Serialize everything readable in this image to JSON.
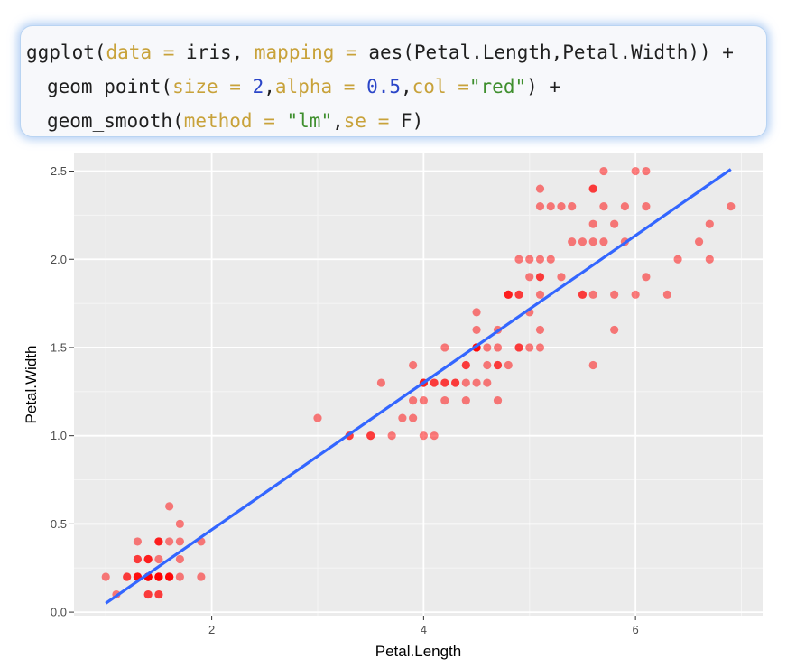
{
  "code": {
    "lines": [
      [
        {
          "t": "ggplot(",
          "c": "fn"
        },
        {
          "t": "data",
          "c": "arg"
        },
        {
          "t": " = ",
          "c": "op"
        },
        {
          "t": "iris, ",
          "c": "plain"
        },
        {
          "t": "mapping",
          "c": "arg"
        },
        {
          "t": " = ",
          "c": "op"
        },
        {
          "t": "aes(Petal.Length,Petal.Width)) +",
          "c": "plain"
        }
      ],
      [
        {
          "t": "geom_point(",
          "c": "fn"
        },
        {
          "t": "size",
          "c": "arg"
        },
        {
          "t": " = ",
          "c": "op"
        },
        {
          "t": "2",
          "c": "num"
        },
        {
          "t": ",",
          "c": "plain"
        },
        {
          "t": "alpha",
          "c": "arg"
        },
        {
          "t": " = ",
          "c": "op"
        },
        {
          "t": "0.5",
          "c": "num"
        },
        {
          "t": ",",
          "c": "plain"
        },
        {
          "t": "col",
          "c": "arg"
        },
        {
          "t": " =",
          "c": "op"
        },
        {
          "t": "\"red\"",
          "c": "str"
        },
        {
          "t": ") +",
          "c": "plain"
        }
      ],
      [
        {
          "t": "geom_smooth(",
          "c": "fn"
        },
        {
          "t": "method",
          "c": "arg"
        },
        {
          "t": " = ",
          "c": "op"
        },
        {
          "t": "\"lm\"",
          "c": "str"
        },
        {
          "t": ",",
          "c": "plain"
        },
        {
          "t": "se",
          "c": "arg"
        },
        {
          "t": " = ",
          "c": "op"
        },
        {
          "t": "F)",
          "c": "plain"
        }
      ]
    ]
  },
  "chart_data": {
    "type": "scatter",
    "title": "",
    "xlabel": "Petal.Length",
    "ylabel": "Petal.Width",
    "xlim": [
      0.7,
      7.2
    ],
    "ylim": [
      -0.02,
      2.6
    ],
    "xticks": [
      2,
      4,
      6
    ],
    "xtick_labels": [
      "2",
      "4",
      "6"
    ],
    "yticks": [
      0.0,
      0.5,
      1.0,
      1.5,
      2.0,
      2.5
    ],
    "ytick_labels": [
      "0.0",
      "0.5",
      "1.0",
      "1.5",
      "2.0",
      "2.5"
    ],
    "grid": true,
    "background_color": "#ebebeb",
    "point_color": "#ff0000",
    "point_alpha": 0.5,
    "line_color": "#3366ff",
    "regression_line": {
      "x": [
        1.0,
        6.9
      ],
      "y": [
        0.05,
        2.51
      ]
    },
    "points": [
      [
        1.4,
        0.2
      ],
      [
        1.4,
        0.2
      ],
      [
        1.3,
        0.2
      ],
      [
        1.5,
        0.2
      ],
      [
        1.4,
        0.2
      ],
      [
        1.7,
        0.4
      ],
      [
        1.4,
        0.3
      ],
      [
        1.5,
        0.2
      ],
      [
        1.4,
        0.2
      ],
      [
        1.5,
        0.1
      ],
      [
        1.5,
        0.2
      ],
      [
        1.6,
        0.2
      ],
      [
        1.4,
        0.1
      ],
      [
        1.1,
        0.1
      ],
      [
        1.2,
        0.2
      ],
      [
        1.5,
        0.4
      ],
      [
        1.3,
        0.4
      ],
      [
        1.4,
        0.3
      ],
      [
        1.7,
        0.3
      ],
      [
        1.5,
        0.3
      ],
      [
        1.7,
        0.2
      ],
      [
        1.5,
        0.4
      ],
      [
        1.0,
        0.2
      ],
      [
        1.7,
        0.5
      ],
      [
        1.9,
        0.2
      ],
      [
        1.6,
        0.2
      ],
      [
        1.6,
        0.4
      ],
      [
        1.5,
        0.2
      ],
      [
        1.4,
        0.2
      ],
      [
        1.6,
        0.2
      ],
      [
        1.6,
        0.2
      ],
      [
        1.5,
        0.4
      ],
      [
        1.5,
        0.1
      ],
      [
        1.4,
        0.2
      ],
      [
        1.5,
        0.2
      ],
      [
        1.2,
        0.2
      ],
      [
        1.3,
        0.2
      ],
      [
        1.4,
        0.1
      ],
      [
        1.3,
        0.2
      ],
      [
        1.5,
        0.2
      ],
      [
        1.3,
        0.3
      ],
      [
        1.3,
        0.3
      ],
      [
        1.3,
        0.2
      ],
      [
        1.6,
        0.6
      ],
      [
        1.9,
        0.4
      ],
      [
        1.4,
        0.3
      ],
      [
        1.6,
        0.2
      ],
      [
        1.4,
        0.2
      ],
      [
        1.5,
        0.2
      ],
      [
        1.4,
        0.2
      ],
      [
        4.7,
        1.4
      ],
      [
        4.5,
        1.5
      ],
      [
        4.9,
        1.5
      ],
      [
        4.0,
        1.3
      ],
      [
        4.6,
        1.5
      ],
      [
        4.5,
        1.3
      ],
      [
        4.7,
        1.6
      ],
      [
        3.3,
        1.0
      ],
      [
        4.6,
        1.3
      ],
      [
        3.9,
        1.4
      ],
      [
        3.5,
        1.0
      ],
      [
        4.2,
        1.5
      ],
      [
        4.0,
        1.0
      ],
      [
        4.7,
        1.4
      ],
      [
        3.6,
        1.3
      ],
      [
        4.4,
        1.4
      ],
      [
        4.5,
        1.5
      ],
      [
        4.1,
        1.0
      ],
      [
        4.5,
        1.5
      ],
      [
        3.9,
        1.1
      ],
      [
        4.8,
        1.8
      ],
      [
        4.0,
        1.3
      ],
      [
        4.9,
        1.5
      ],
      [
        4.7,
        1.2
      ],
      [
        4.3,
        1.3
      ],
      [
        4.4,
        1.4
      ],
      [
        4.8,
        1.4
      ],
      [
        5.0,
        1.7
      ],
      [
        4.5,
        1.5
      ],
      [
        3.5,
        1.0
      ],
      [
        3.8,
        1.1
      ],
      [
        3.7,
        1.0
      ],
      [
        3.9,
        1.2
      ],
      [
        5.1,
        1.6
      ],
      [
        4.5,
        1.5
      ],
      [
        4.5,
        1.6
      ],
      [
        4.7,
        1.5
      ],
      [
        4.4,
        1.3
      ],
      [
        4.1,
        1.3
      ],
      [
        4.0,
        1.3
      ],
      [
        4.4,
        1.2
      ],
      [
        4.6,
        1.4
      ],
      [
        4.0,
        1.2
      ],
      [
        3.3,
        1.0
      ],
      [
        4.2,
        1.3
      ],
      [
        4.2,
        1.2
      ],
      [
        4.2,
        1.3
      ],
      [
        4.3,
        1.3
      ],
      [
        3.0,
        1.1
      ],
      [
        4.1,
        1.3
      ],
      [
        6.0,
        2.5
      ],
      [
        5.1,
        1.9
      ],
      [
        5.9,
        2.1
      ],
      [
        5.6,
        1.8
      ],
      [
        5.8,
        2.2
      ],
      [
        6.6,
        2.1
      ],
      [
        4.5,
        1.7
      ],
      [
        6.3,
        1.8
      ],
      [
        5.8,
        1.8
      ],
      [
        6.1,
        2.5
      ],
      [
        5.1,
        2.0
      ],
      [
        5.3,
        1.9
      ],
      [
        5.5,
        2.1
      ],
      [
        5.0,
        2.0
      ],
      [
        5.1,
        2.4
      ],
      [
        5.3,
        2.3
      ],
      [
        5.5,
        1.8
      ],
      [
        6.7,
        2.2
      ],
      [
        6.9,
        2.3
      ],
      [
        5.0,
        1.5
      ],
      [
        5.7,
        2.3
      ],
      [
        4.9,
        2.0
      ],
      [
        6.7,
        2.0
      ],
      [
        4.9,
        1.8
      ],
      [
        5.7,
        2.1
      ],
      [
        6.0,
        1.8
      ],
      [
        4.8,
        1.8
      ],
      [
        4.9,
        1.8
      ],
      [
        5.6,
        2.1
      ],
      [
        5.8,
        1.6
      ],
      [
        6.1,
        1.9
      ],
      [
        6.4,
        2.0
      ],
      [
        5.6,
        2.2
      ],
      [
        5.1,
        1.5
      ],
      [
        5.6,
        1.4
      ],
      [
        6.1,
        2.3
      ],
      [
        5.6,
        2.4
      ],
      [
        5.5,
        1.8
      ],
      [
        4.8,
        1.8
      ],
      [
        5.4,
        2.1
      ],
      [
        5.6,
        2.4
      ],
      [
        5.1,
        2.3
      ],
      [
        5.1,
        1.9
      ],
      [
        5.9,
        2.3
      ],
      [
        5.7,
        2.5
      ],
      [
        5.2,
        2.3
      ],
      [
        5.0,
        1.9
      ],
      [
        5.2,
        2.0
      ],
      [
        5.4,
        2.3
      ],
      [
        5.1,
        1.8
      ]
    ]
  }
}
